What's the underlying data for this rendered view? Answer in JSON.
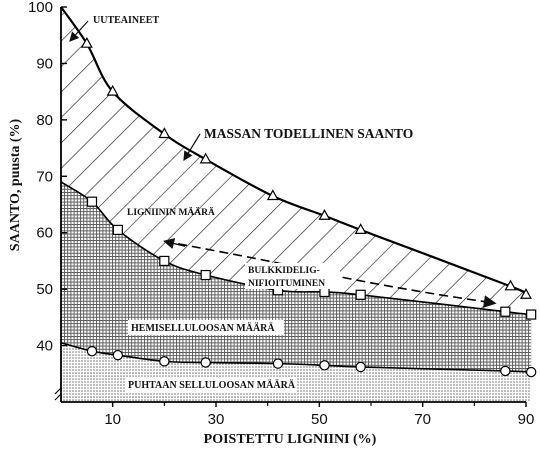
{
  "chart_data": {
    "type": "area",
    "xlabel": "POISTETTU LIGNIINI (%)",
    "ylabel": "SAANTO, puusta (%)",
    "xlim": [
      0,
      90
    ],
    "ylim": [
      30,
      100
    ],
    "xticks": [
      "10",
      "30",
      "50",
      "70",
      "90"
    ],
    "yticks": [
      "40",
      "50",
      "60",
      "70",
      "80",
      "90",
      "100"
    ],
    "series": [
      {
        "name": "MASSAN TODELLINEN SAANTO",
        "marker": "triangle",
        "x": [
          5,
          10,
          20,
          28,
          41,
          51,
          58,
          87,
          90
        ],
        "y": [
          93.5,
          85,
          77.5,
          73,
          66.5,
          63,
          60.5,
          50.5,
          49
        ]
      },
      {
        "name": "",
        "marker": "square",
        "x": [
          6,
          11,
          20,
          28,
          42,
          51,
          58,
          86,
          91
        ],
        "y": [
          65.5,
          60.5,
          55,
          52.5,
          49.8,
          49.5,
          49,
          46,
          45.5
        ]
      },
      {
        "name": "",
        "marker": "circle",
        "x": [
          6,
          11,
          20,
          28,
          42,
          51,
          58,
          86,
          91
        ],
        "y": [
          39,
          38.3,
          37.2,
          37,
          36.8,
          36.5,
          36.2,
          35.5,
          35.3
        ]
      }
    ],
    "annotations": {
      "uuteaineet": "UUTEAINEET",
      "massan_saanto": "MASSAN TODELLINEN SAANTO",
      "ligniini": "LIGNIININ MÄÄRÄ",
      "bulk_line1": "BULKKIDELIG-",
      "bulk_line2": "NIFIOITUMINEN",
      "hemiselluloosa": "HEMISELLULOOSAN MÄÄRÄ",
      "selluloosa": "PUHTAAN SELLULOOSAN MÄÄRÄ"
    }
  }
}
